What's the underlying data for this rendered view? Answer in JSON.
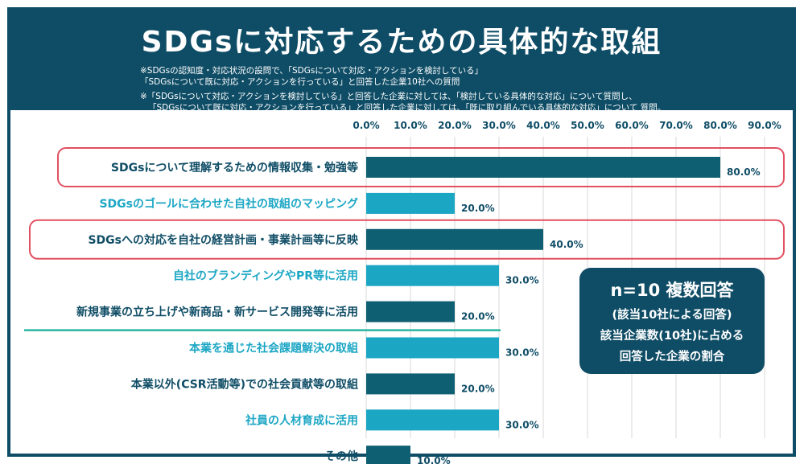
{
  "title": "SDGsに対応するための具体的な取組",
  "notes": [
    "※SDGsの認知度・対応状況の設問で、「SDGsについて対応・アクションを検討している」",
    "「SDGsについて既に対応・アクションを行っている」と回答した企業10社への質問",
    "※「SDGsについて対応・アクションを検討している」と回答した企業に対しては、「検討している具体的な対応」について質問し、",
    "「SDGsについて既に対応・アクションを行っている」と回答した企業に対しては、「既に取り組んでいる具体的な対応」について 質問。"
  ],
  "info_box": {
    "title": "n=10 複数回答",
    "line1": "(該当10社による回答)",
    "line2": "該当企業数(10社)に占める",
    "line3": "回答した企業の割合"
  },
  "colors": {
    "header_bg": "#0f4d66",
    "bar_dark": "#0f5f73",
    "bar_light": "#1ba6c4",
    "label_dark": "#0f4d66",
    "label_light": "#1ba6c4",
    "highlight_border": "#e05060",
    "divider": "#2bb5a0",
    "grid": "#d8d8d8"
  },
  "chart_data": {
    "type": "bar",
    "orientation": "horizontal",
    "categories": [
      "SDGsについて理解するための情報収集・勉強等",
      "SDGsのゴールに合わせた自社の取組のマッピング",
      "SDGsへの対応を自社の経営計画・事業計画等に反映",
      "自社のブランディングやPR等に活用",
      "新規事業の立ち上げや新商品・新サービス開発等に活用",
      "本業を通じた社会課題解決の取組",
      "本業以外(CSR活動等)での社会貢献等の取組",
      "社員の人材育成に活用",
      "その他"
    ],
    "values": [
      80.0,
      20.0,
      40.0,
      30.0,
      20.0,
      30.0,
      20.0,
      30.0,
      10.0
    ],
    "value_labels": [
      "80.0%",
      "20.0%",
      "40.0%",
      "30.0%",
      "20.0%",
      "30.0%",
      "20.0%",
      "30.0%",
      "10.0%"
    ],
    "bar_style": [
      "dark",
      "light",
      "dark",
      "light",
      "dark",
      "light",
      "dark",
      "light",
      "dark"
    ],
    "highlighted": [
      true,
      false,
      true,
      false,
      false,
      false,
      false,
      false,
      false
    ],
    "tick_labels": [
      "0.0%",
      "10.0%",
      "20.0%",
      "30.0%",
      "40.0%",
      "50.0%",
      "60.0%",
      "70.0%",
      "80.0%",
      "90.0%"
    ],
    "xlim": [
      0,
      90
    ],
    "grid": true
  }
}
